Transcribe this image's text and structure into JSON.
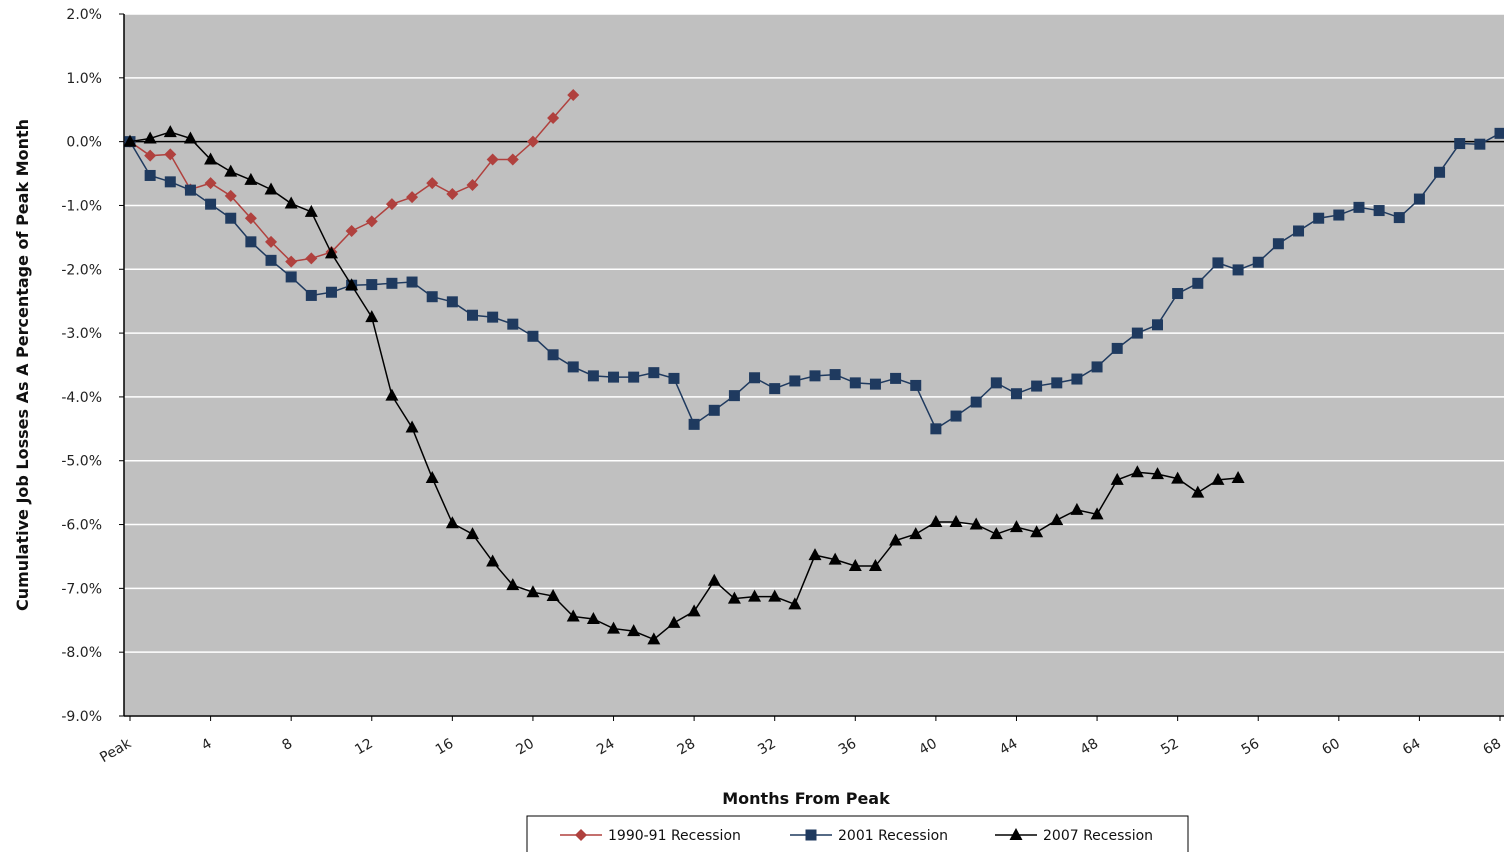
{
  "chart_data": {
    "type": "line",
    "title": "",
    "xlabel": "Months From Peak",
    "ylabel": "Cumulative Job Losses As A Percentage of Peak Month",
    "xlim": [
      0,
      68
    ],
    "ylim": [
      -9.0,
      2.0
    ],
    "y_ticks": [
      2.0,
      1.0,
      0.0,
      -1.0,
      -2.0,
      -3.0,
      -4.0,
      -5.0,
      -6.0,
      -7.0,
      -8.0,
      -9.0
    ],
    "y_tick_labels": [
      "2.0%",
      "1.0%",
      "0.0%",
      "-1.0%",
      "-2.0%",
      "-3.0%",
      "-4.0%",
      "-5.0%",
      "-6.0%",
      "-7.0%",
      "-8.0%",
      "-9.0%"
    ],
    "x_ticks": [
      0,
      4,
      8,
      12,
      16,
      20,
      24,
      28,
      32,
      36,
      40,
      44,
      48,
      52,
      56,
      60,
      64,
      68
    ],
    "x_tick_labels": [
      "Peak",
      "4",
      "8",
      "12",
      "16",
      "20",
      "24",
      "28",
      "32",
      "36",
      "40",
      "44",
      "48",
      "52",
      "56",
      "60",
      "64",
      "68"
    ],
    "grid": "horizontal",
    "legend_position": "bottom-center",
    "plot_background": "#c0c0c0",
    "series": [
      {
        "name": "1990-91 Recession",
        "color": "#b0413e",
        "marker": "diamond",
        "x": [
          0,
          1,
          2,
          3,
          4,
          5,
          6,
          7,
          8,
          9,
          10,
          11,
          12,
          13,
          14,
          15,
          16,
          17,
          18,
          19,
          20,
          21,
          22
        ],
        "values": [
          0.0,
          -0.22,
          -0.2,
          -0.75,
          -0.65,
          -0.85,
          -1.2,
          -1.57,
          -1.88,
          -1.83,
          -1.73,
          -1.4,
          -1.25,
          -0.98,
          -0.87,
          -0.65,
          -0.82,
          -0.68,
          -0.28,
          -0.28,
          0.0,
          0.37,
          0.73
        ]
      },
      {
        "name": "2001 Recession",
        "color": "#1f3a5f",
        "marker": "square",
        "x": [
          0,
          1,
          2,
          3,
          4,
          5,
          6,
          7,
          8,
          9,
          10,
          11,
          12,
          13,
          14,
          15,
          16,
          17,
          18,
          19,
          20,
          21,
          22,
          23,
          24,
          25,
          26,
          27,
          28,
          29,
          30,
          31,
          32,
          33,
          34,
          35,
          36,
          37,
          38,
          39,
          40,
          41,
          42,
          43,
          44,
          45,
          46,
          47,
          48,
          49,
          50,
          51,
          52,
          53,
          54,
          55,
          56,
          57,
          58,
          59,
          60,
          61,
          62,
          63,
          64,
          65,
          66,
          67,
          68
        ],
        "values": [
          0.0,
          -0.53,
          -0.63,
          -0.76,
          -0.98,
          -1.2,
          -1.57,
          -1.86,
          -2.12,
          -2.41,
          -2.36,
          -2.25,
          -2.24,
          -2.22,
          -2.2,
          -2.43,
          -2.51,
          -2.72,
          -2.75,
          -2.86,
          -3.05,
          -3.34,
          -3.53,
          -3.67,
          -3.69,
          -3.69,
          -3.62,
          -3.71,
          -4.43,
          -4.21,
          -3.98,
          -3.7,
          -3.87,
          -3.75,
          -3.67,
          -3.65,
          -3.78,
          -3.8,
          -3.71,
          -3.82,
          -4.5,
          -4.3,
          -4.08,
          -3.78,
          -3.95,
          -3.83,
          -3.78,
          -3.72,
          -3.53,
          -3.24,
          -3.0,
          -2.87,
          -2.38,
          -2.22,
          -1.9,
          -2.01,
          -1.89,
          -1.6,
          -1.4,
          -1.2,
          -1.15,
          -1.03,
          -1.08,
          -1.19,
          -0.9,
          -0.48,
          -0.03,
          -0.04,
          0.13
        ]
      },
      {
        "name": "2007 Recession",
        "color": "#000000",
        "marker": "triangle",
        "x": [
          0,
          1,
          2,
          3,
          4,
          5,
          6,
          7,
          8,
          9,
          10,
          11,
          12,
          13,
          14,
          15,
          16,
          17,
          18,
          19,
          20,
          21,
          22,
          23,
          24,
          25,
          26,
          27,
          28,
          29,
          30,
          31,
          32,
          33,
          34,
          35,
          36,
          37,
          38,
          39,
          40,
          41,
          42,
          43,
          44,
          45,
          46,
          47,
          48,
          49,
          50,
          51,
          52,
          53,
          54,
          55
        ],
        "values": [
          0.0,
          0.05,
          0.15,
          0.05,
          -0.28,
          -0.47,
          -0.6,
          -0.75,
          -0.97,
          -1.1,
          -1.75,
          -2.25,
          -2.75,
          -3.98,
          -4.48,
          -5.27,
          -5.98,
          -6.15,
          -6.58,
          -6.95,
          -7.06,
          -7.12,
          -7.44,
          -7.48,
          -7.63,
          -7.67,
          -7.8,
          -7.54,
          -7.36,
          -6.88,
          -7.16,
          -7.13,
          -7.13,
          -7.25,
          -6.48,
          -6.55,
          -6.65,
          -6.65,
          -6.25,
          -6.15,
          -5.96,
          -5.96,
          -6.0,
          -6.15,
          -6.04,
          -6.12,
          -5.93,
          -5.77,
          -5.84,
          -5.3,
          -5.18,
          -5.21,
          -5.28,
          -5.5,
          -5.3,
          -5.27
        ]
      }
    ]
  }
}
